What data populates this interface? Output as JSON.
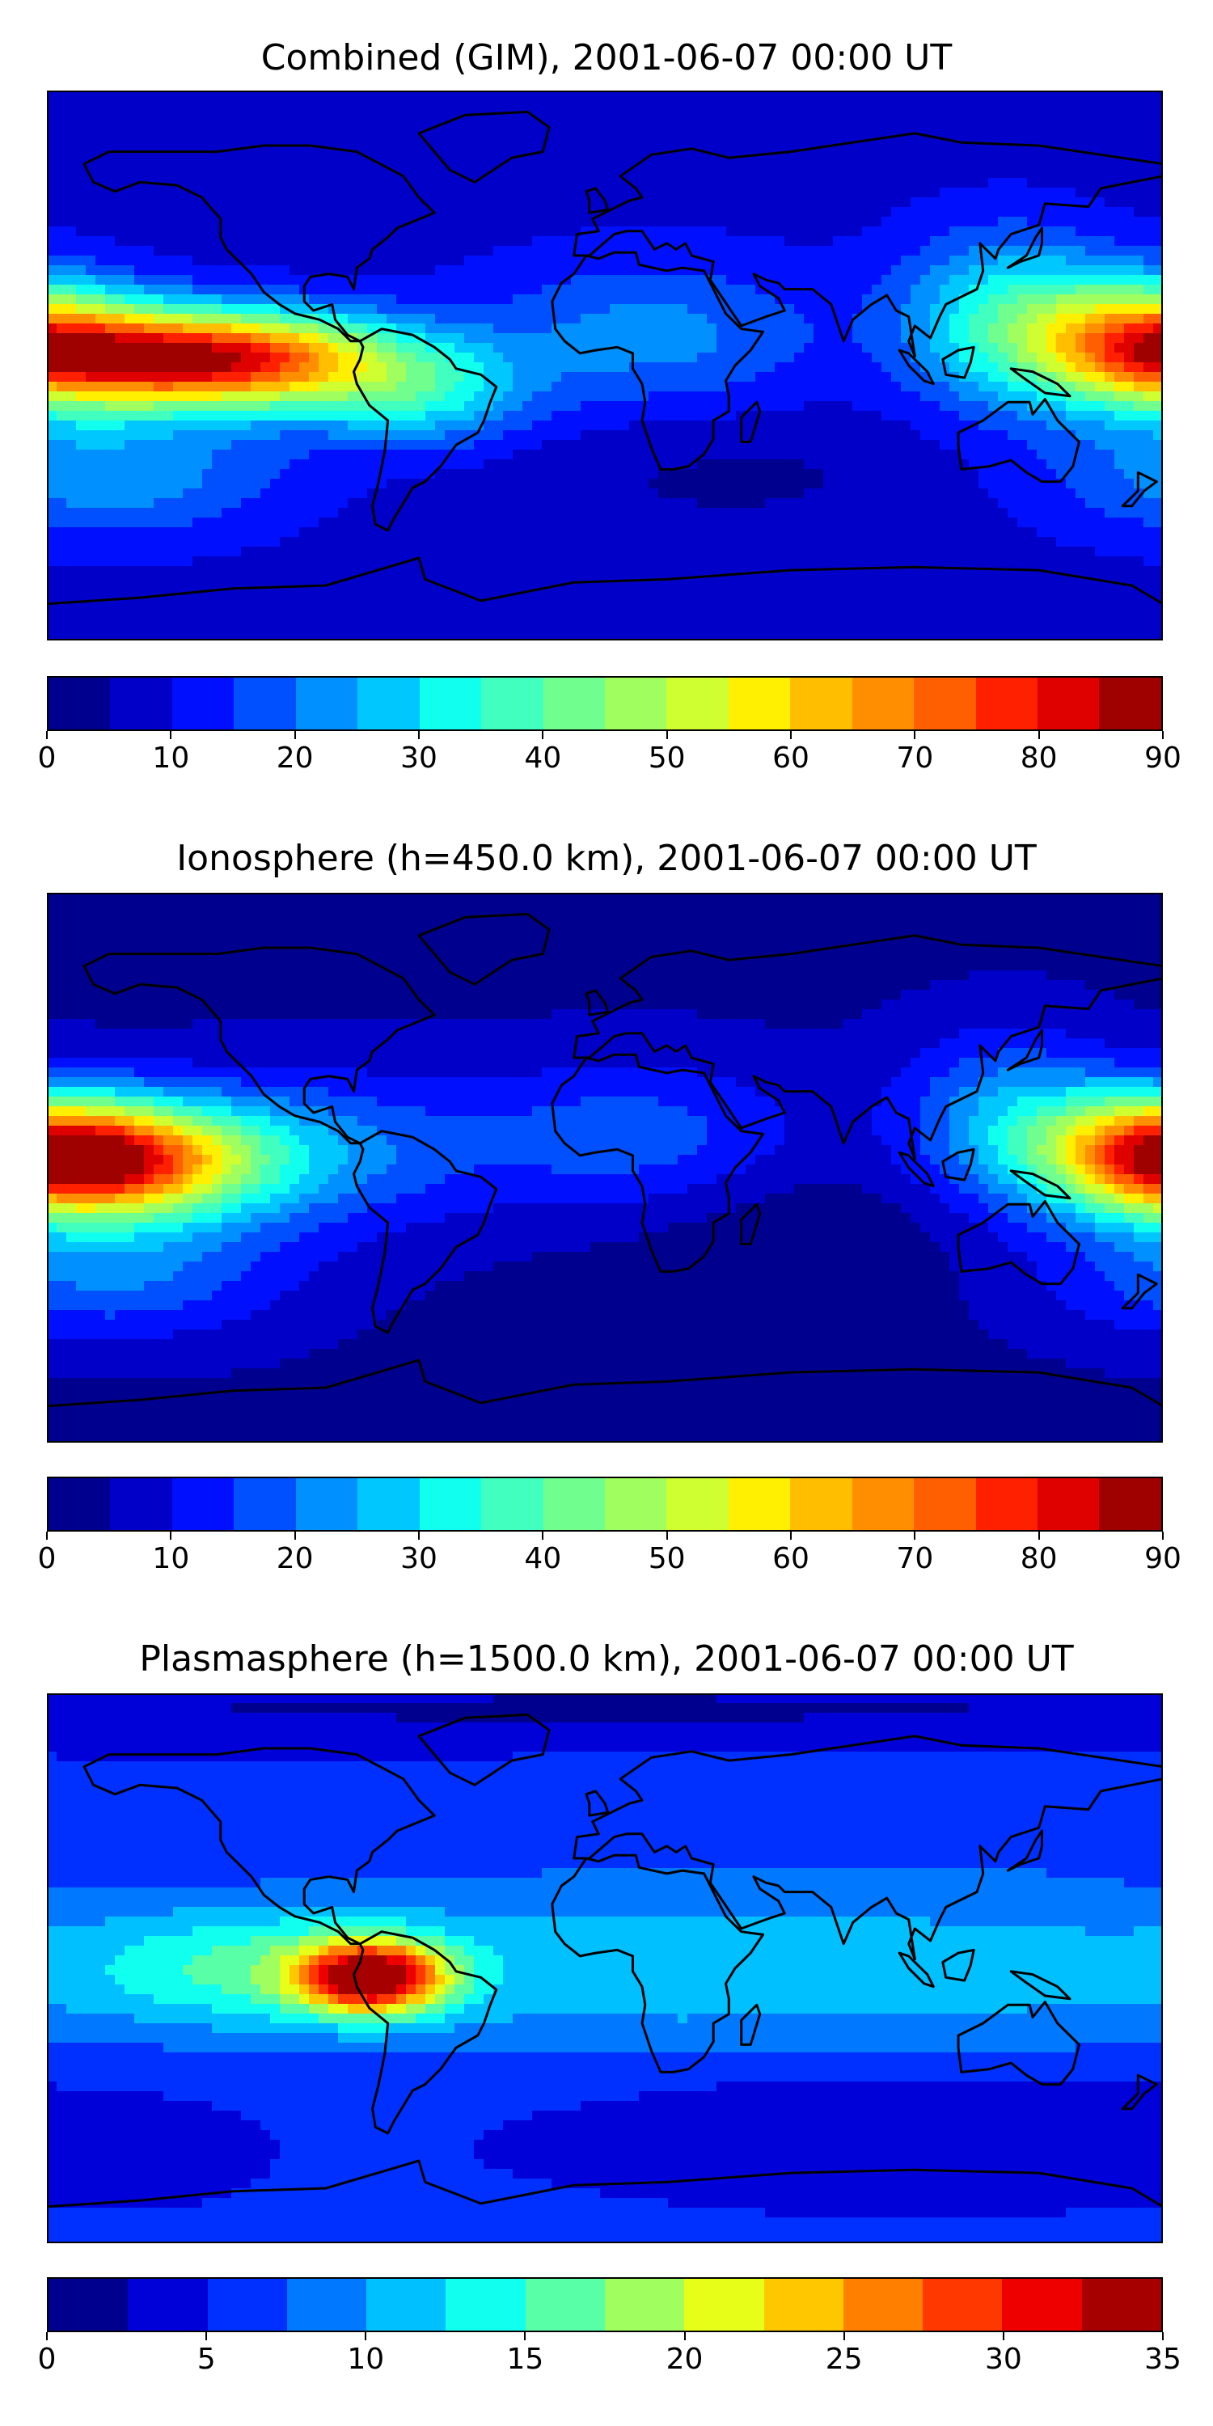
{
  "panels": [
    {
      "title": "Combined (GIM), 2001-06-07 00:00 UT",
      "colorbar": {
        "ticks": [
          "0",
          "10",
          "20",
          "30",
          "40",
          "50",
          "60",
          "70",
          "80",
          "90"
        ],
        "tick_values": [
          0,
          10,
          20,
          30,
          40,
          50,
          60,
          70,
          80,
          90
        ],
        "range": [
          0,
          90
        ],
        "levels": 18
      },
      "field": {
        "base": 8,
        "blobs": [
          {
            "lon": -128,
            "lat": 2,
            "amp": 78,
            "slon": 40,
            "slat": 11
          },
          {
            "lon": 175,
            "lat": 8,
            "amp": 50,
            "slon": 25,
            "slat": 14
          },
          {
            "lon": 130,
            "lat": 15,
            "amp": 25,
            "slon": 25,
            "slat": 20
          },
          {
            "lon": -60,
            "lat": -10,
            "amp": 20,
            "slon": 25,
            "slat": 12
          },
          {
            "lon": 15,
            "lat": 10,
            "amp": 14,
            "slon": 40,
            "slat": 18
          },
          {
            "lon": -160,
            "lat": -35,
            "amp": 16,
            "slon": 40,
            "slat": 15
          },
          {
            "lon": 40,
            "lat": -35,
            "amp": -4,
            "slon": 50,
            "slat": 15
          }
        ]
      }
    },
    {
      "title": "Ionosphere  (h=450.0 km), 2001-06-07 00:00 UT",
      "colorbar": {
        "ticks": [
          "0",
          "10",
          "20",
          "30",
          "40",
          "50",
          "60",
          "70",
          "80",
          "90"
        ],
        "tick_values": [
          0,
          10,
          20,
          30,
          40,
          50,
          60,
          70,
          80,
          90
        ],
        "range": [
          0,
          90
        ],
        "levels": 18
      },
      "field": {
        "base": 4,
        "blobs": [
          {
            "lon": -155,
            "lat": 2,
            "amp": 58,
            "slon": 30,
            "slat": 13
          },
          {
            "lon": 175,
            "lat": 5,
            "amp": 48,
            "slon": 25,
            "slat": 14
          },
          {
            "lon": 130,
            "lat": 15,
            "amp": 20,
            "slon": 25,
            "slat": 20
          },
          {
            "lon": -100,
            "lat": 5,
            "amp": 18,
            "slon": 40,
            "slat": 18
          },
          {
            "lon": 10,
            "lat": 10,
            "amp": 14,
            "slon": 40,
            "slat": 18
          },
          {
            "lon": -160,
            "lat": -35,
            "amp": 16,
            "slon": 40,
            "slat": 15
          },
          {
            "lon": 60,
            "lat": -20,
            "amp": -4,
            "slon": 40,
            "slat": 20
          }
        ]
      }
    },
    {
      "title": "Plasmasphere (h=1500.0 km), 2001-06-07 00:00 UT",
      "colorbar": {
        "ticks": [
          "0",
          "5",
          "10",
          "15",
          "20",
          "25",
          "30",
          "35"
        ],
        "tick_values": [
          0,
          5,
          10,
          15,
          20,
          25,
          30,
          35
        ],
        "range": [
          0,
          35
        ],
        "levels": 14
      },
      "field": {
        "base": 5,
        "blobs": [
          {
            "lon": -75,
            "lat": -3,
            "amp": 25,
            "slon": 16,
            "slat": 8
          },
          {
            "lon": -110,
            "lat": 0,
            "amp": 10,
            "slon": 45,
            "slat": 15
          },
          {
            "lon": 20,
            "lat": 0,
            "amp": 6,
            "slon": 70,
            "slat": 25
          },
          {
            "lon": 140,
            "lat": 0,
            "amp": 4,
            "slon": 50,
            "slat": 25
          },
          {
            "lon": 90,
            "lat": -45,
            "amp": -3,
            "slon": 70,
            "slat": 12
          },
          {
            "lon": 0,
            "lat": 85,
            "amp": -3,
            "slon": 200,
            "slat": 6
          }
        ]
      }
    }
  ],
  "colormap": [
    "#00008f",
    "#0000c8",
    "#0010ff",
    "#0050ff",
    "#0090ff",
    "#00c8ff",
    "#10ffef",
    "#40ffbf",
    "#70ff8f",
    "#a0ff5f",
    "#cfff30",
    "#ffef00",
    "#ffbf00",
    "#ff8f00",
    "#ff5f00",
    "#ff2000",
    "#df0000",
    "#9f0000"
  ],
  "colormap_14": [
    "#00008f",
    "#0000d8",
    "#0030ff",
    "#0078ff",
    "#00c0ff",
    "#10ffef",
    "#58ffa7",
    "#a0ff5f",
    "#e7ff18",
    "#ffc700",
    "#ff8000",
    "#ff3800",
    "#ef0000",
    "#a70000"
  ],
  "map": {
    "lon_range": [
      -180,
      180
    ],
    "lat_range": [
      -90,
      90
    ]
  }
}
